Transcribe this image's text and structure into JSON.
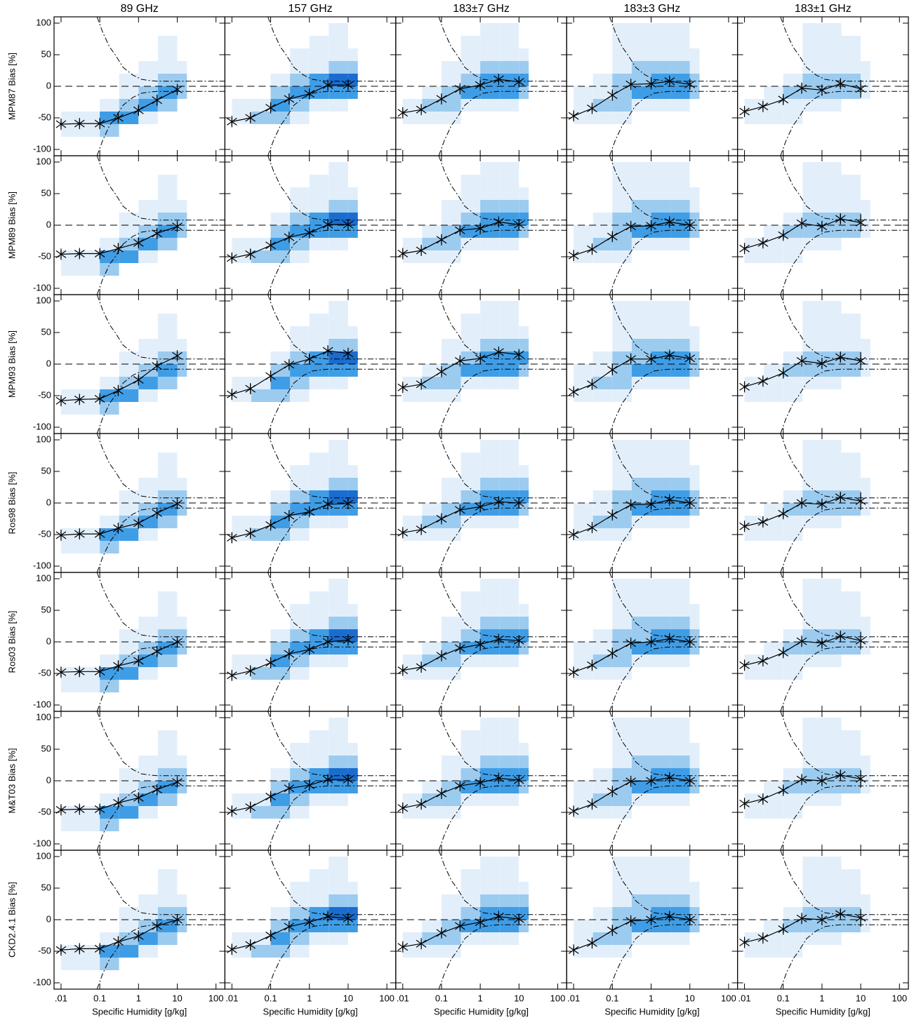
{
  "chart_data": {
    "type": "line",
    "columns": [
      "89 GHz",
      "157 GHz",
      "183±7 GHz",
      "183±3 GHz",
      "183±1 GHz"
    ],
    "rows": [
      "MPM87 Bias [%]",
      "MPM89 Bias [%]",
      "MPM93 Bias [%]",
      "Ros98 Bias [%]",
      "Ros03 Bias [%]",
      "M&T03 Bias [%]",
      "CKD2.4.1 Bias [%]"
    ],
    "xlabel": "Specific Humidity [g/kg]",
    "log_x": true,
    "xlim": [
      0.0066,
      170
    ],
    "xticks": [
      {
        "value": 0.01,
        "label": ".01"
      },
      0.1,
      1,
      10,
      100
    ],
    "ylim": [
      -110,
      110
    ],
    "yticks": [
      -100,
      -50,
      0,
      50,
      100
    ],
    "x": [
      0.01,
      0.03,
      0.1,
      0.3,
      1,
      3,
      10
    ],
    "line_color": "#000000",
    "panels": [
      [
        [
          -60,
          -59,
          -59,
          -50,
          -38,
          -22,
          -5
        ],
        [
          -56,
          -50,
          -34,
          -20,
          -12,
          2,
          2
        ],
        [
          -42,
          -37,
          -20,
          -4,
          2,
          11,
          7
        ],
        [
          -47,
          -35,
          -14,
          3,
          4,
          8,
          3
        ],
        [
          -40,
          -32,
          -21,
          -3,
          -6,
          4,
          -4
        ]
      ],
      [
        [
          -46,
          -45,
          -45,
          -37,
          -28,
          -13,
          -2
        ],
        [
          -52,
          -46,
          -32,
          -19,
          -12,
          1,
          1
        ],
        [
          -45,
          -40,
          -23,
          -8,
          -5,
          5,
          1
        ],
        [
          -48,
          -38,
          -18,
          -2,
          -1,
          5,
          0
        ],
        [
          -37,
          -28,
          -16,
          3,
          -2,
          10,
          4
        ]
      ],
      [
        [
          -58,
          -56,
          -55,
          -42,
          -25,
          -3,
          13
        ],
        [
          -48,
          -39,
          -19,
          -1,
          8,
          21,
          17
        ],
        [
          -37,
          -32,
          -12,
          5,
          9,
          19,
          15
        ],
        [
          -44,
          -32,
          -9,
          8,
          8,
          14,
          9
        ],
        [
          -36,
          -27,
          -14,
          5,
          1,
          11,
          5
        ]
      ],
      [
        [
          -51,
          -49,
          -49,
          -40,
          -32,
          -16,
          -1
        ],
        [
          -55,
          -48,
          -35,
          -20,
          -14,
          -2,
          -1
        ],
        [
          -47,
          -42,
          -25,
          -11,
          -6,
          2,
          0
        ],
        [
          -50,
          -39,
          -19,
          -3,
          -2,
          5,
          0
        ],
        [
          -37,
          -30,
          -17,
          0,
          -2,
          9,
          3
        ]
      ],
      [
        [
          -48,
          -47,
          -47,
          -38,
          -30,
          -15,
          0
        ],
        [
          -53,
          -46,
          -33,
          -19,
          -12,
          0,
          3
        ],
        [
          -45,
          -40,
          -22,
          -10,
          -4,
          4,
          2
        ],
        [
          -48,
          -37,
          -18,
          -2,
          0,
          5,
          0
        ],
        [
          -37,
          -30,
          -17,
          1,
          -2,
          9,
          2
        ]
      ],
      [
        [
          -46,
          -45,
          -45,
          -35,
          -27,
          -14,
          -2
        ],
        [
          -48,
          -42,
          -25,
          -12,
          -7,
          2,
          2
        ],
        [
          -43,
          -37,
          -20,
          -8,
          -3,
          4,
          1
        ],
        [
          -48,
          -37,
          -17,
          -1,
          0,
          5,
          0
        ],
        [
          -36,
          -29,
          -15,
          2,
          0,
          9,
          3
        ]
      ],
      [
        [
          -48,
          -46,
          -46,
          -35,
          -26,
          -10,
          0
        ],
        [
          -47,
          -40,
          -25,
          -11,
          -4,
          5,
          2
        ],
        [
          -43,
          -38,
          -21,
          -10,
          -4,
          5,
          1
        ],
        [
          -48,
          -37,
          -17,
          -2,
          0,
          5,
          0
        ],
        [
          -36,
          -29,
          -15,
          2,
          0,
          9,
          3
        ]
      ]
    ],
    "errors": [
      [
        6,
        6,
        7,
        8,
        7,
        8,
        6
      ],
      [
        7,
        8,
        7,
        7,
        6,
        7,
        6
      ],
      [
        5,
        6,
        6,
        6,
        6,
        5,
        6
      ],
      [
        6,
        6,
        6,
        5,
        6,
        6,
        7
      ],
      [
        6,
        6,
        6,
        7,
        7,
        7,
        14
      ]
    ],
    "density_xbins": [
      0.01,
      0.0316,
      0.1,
      0.316,
      1,
      3.16,
      10,
      17.8
    ],
    "density_ybins": [
      -80,
      -60,
      -40,
      -20,
      0,
      20,
      40,
      60,
      80,
      100
    ],
    "density_colors": [
      "#ffffff",
      "#e2effb",
      "#9ccbf0",
      "#3f9de6",
      "#1a6ccf"
    ],
    "density": [
      [
        [
          1,
          1,
          0,
          0,
          0,
          0,
          0,
          0,
          0
        ],
        [
          1,
          1,
          0,
          0,
          0,
          0,
          0,
          0,
          0
        ],
        [
          2,
          3,
          1,
          0,
          0,
          0,
          0,
          0,
          0
        ],
        [
          0,
          3,
          2,
          1,
          1,
          0,
          0,
          0,
          0
        ],
        [
          0,
          1,
          3,
          2,
          1,
          1,
          0,
          0,
          0
        ],
        [
          0,
          0,
          2,
          3,
          2,
          1,
          1,
          1,
          0
        ],
        [
          0,
          0,
          0,
          2,
          2,
          1,
          0,
          0,
          0
        ]
      ],
      [
        [
          0,
          1,
          1,
          0,
          0,
          0,
          0,
          0,
          0
        ],
        [
          0,
          2,
          1,
          0,
          0,
          0,
          0,
          0,
          0
        ],
        [
          0,
          2,
          3,
          2,
          1,
          0,
          0,
          0,
          0
        ],
        [
          0,
          1,
          2,
          3,
          2,
          1,
          1,
          0,
          0
        ],
        [
          0,
          0,
          1,
          3,
          3,
          1,
          1,
          1,
          0
        ],
        [
          0,
          0,
          1,
          3,
          4,
          2,
          1,
          1,
          1
        ],
        [
          0,
          0,
          0,
          3,
          4,
          2,
          1,
          0,
          0
        ]
      ],
      [
        [
          0,
          1,
          1,
          0,
          0,
          0,
          0,
          0,
          0
        ],
        [
          0,
          1,
          2,
          1,
          0,
          0,
          0,
          0,
          0
        ],
        [
          0,
          1,
          2,
          2,
          1,
          1,
          0,
          0,
          0
        ],
        [
          0,
          0,
          1,
          3,
          2,
          1,
          1,
          1,
          0
        ],
        [
          0,
          0,
          1,
          3,
          3,
          2,
          1,
          1,
          1
        ],
        [
          0,
          0,
          1,
          3,
          3,
          2,
          1,
          1,
          1
        ],
        [
          0,
          0,
          0,
          2,
          3,
          2,
          1,
          0,
          0
        ]
      ],
      [
        [
          0,
          1,
          1,
          1,
          0,
          0,
          0,
          0,
          0
        ],
        [
          0,
          1,
          2,
          1,
          1,
          0,
          0,
          0,
          0
        ],
        [
          0,
          1,
          2,
          2,
          2,
          1,
          1,
          1,
          1
        ],
        [
          0,
          0,
          1,
          3,
          2,
          2,
          1,
          1,
          1
        ],
        [
          0,
          0,
          1,
          3,
          3,
          2,
          1,
          1,
          1
        ],
        [
          0,
          0,
          1,
          3,
          3,
          2,
          1,
          1,
          1
        ],
        [
          0,
          0,
          0,
          2,
          2,
          1,
          1,
          0,
          0
        ]
      ],
      [
        [
          0,
          1,
          1,
          0,
          0,
          0,
          0,
          0,
          0
        ],
        [
          0,
          1,
          1,
          1,
          0,
          0,
          0,
          0,
          0
        ],
        [
          0,
          1,
          1,
          2,
          1,
          0,
          0,
          0,
          0
        ],
        [
          0,
          0,
          1,
          2,
          2,
          1,
          1,
          1,
          1
        ],
        [
          0,
          0,
          1,
          2,
          2,
          1,
          1,
          1,
          1
        ],
        [
          0,
          0,
          0,
          2,
          2,
          1,
          1,
          1,
          0
        ],
        [
          0,
          0,
          0,
          1,
          1,
          1,
          0,
          0,
          0
        ]
      ]
    ],
    "zero_line": 0,
    "reference_upper": {
      "x": [
        0.085,
        0.12,
        0.18,
        0.25,
        0.4,
        0.7,
        1.2,
        2,
        3,
        170
      ],
      "y": [
        110,
        85,
        62,
        50,
        30,
        18,
        11,
        9,
        8,
        8
      ]
    },
    "reference_lower": {
      "x": [
        0.085,
        0.12,
        0.18,
        0.25,
        0.4,
        0.7,
        1.2,
        2,
        3,
        170
      ],
      "y": [
        -110,
        -85,
        -62,
        -50,
        -30,
        -18,
        -11,
        -9,
        -8,
        -8
      ]
    }
  }
}
